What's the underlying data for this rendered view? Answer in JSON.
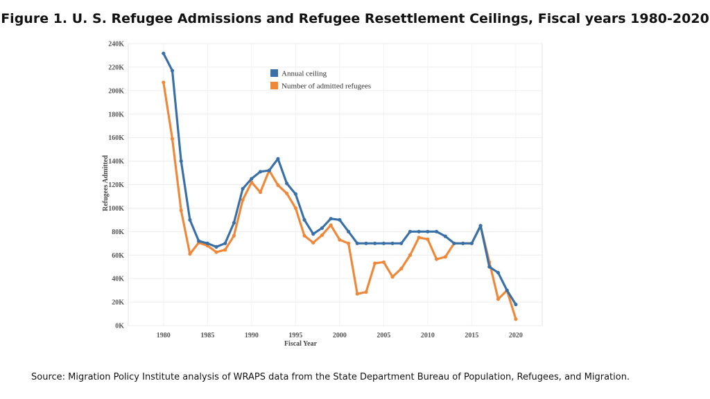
{
  "title": "Figure 1. U. S. Refugee Admissions and Refugee Resettlement Ceilings, Fiscal years 1980-2020",
  "source": "Source: Migration Policy Institute analysis of WRAPS data from the State Department Bureau of Population, Refugees, and Migration.",
  "chart_data": {
    "type": "line",
    "xlabel": "Fiscal Year",
    "ylabel": "Refugees Admitted",
    "xlim": [
      1976,
      2023
    ],
    "ylim": [
      0,
      240000
    ],
    "grid": true,
    "legend_position": "top-center",
    "x_ticks": [
      1980,
      1985,
      1990,
      1995,
      2000,
      2005,
      2010,
      2015,
      2020
    ],
    "y_ticks": [
      0,
      20000,
      40000,
      60000,
      80000,
      100000,
      120000,
      140000,
      160000,
      180000,
      200000,
      220000,
      240000
    ],
    "y_tick_labels": [
      "0K",
      "20K",
      "40K",
      "60K",
      "80K",
      "100K",
      "120K",
      "140K",
      "160K",
      "180K",
      "200K",
      "220K",
      "240K"
    ],
    "x": [
      1980,
      1981,
      1982,
      1983,
      1984,
      1985,
      1986,
      1987,
      1988,
      1989,
      1990,
      1991,
      1992,
      1993,
      1994,
      1995,
      1996,
      1997,
      1998,
      1999,
      2000,
      2001,
      2002,
      2003,
      2004,
      2005,
      2006,
      2007,
      2008,
      2009,
      2010,
      2011,
      2012,
      2013,
      2014,
      2015,
      2016,
      2017,
      2018,
      2019,
      2020
    ],
    "series": [
      {
        "name": "Annual ceiling",
        "color": "#3a70a8",
        "values": [
          231700,
          217000,
          140000,
          90000,
          72000,
          70000,
          67000,
          70000,
          87500,
          116500,
          125000,
          131000,
          132000,
          142000,
          121000,
          112000,
          90000,
          78000,
          83000,
          91000,
          90000,
          80000,
          70000,
          70000,
          70000,
          70000,
          70000,
          70000,
          80000,
          80000,
          80000,
          80000,
          76000,
          70000,
          70000,
          70000,
          85000,
          50000,
          45000,
          30000,
          18000
        ]
      },
      {
        "name": "Number of admitted refugees",
        "color": "#f0883a",
        "values": [
          207000,
          159000,
          98000,
          61000,
          70500,
          68000,
          62500,
          64500,
          76500,
          107000,
          122000,
          113500,
          132000,
          119500,
          112500,
          100000,
          76500,
          70500,
          77000,
          85500,
          73000,
          70000,
          27000,
          28500,
          53000,
          54000,
          41500,
          48500,
          60000,
          75000,
          73500,
          56500,
          58500,
          70000,
          70000,
          70000,
          85000,
          54000,
          22500,
          30000,
          5500
        ]
      }
    ]
  }
}
